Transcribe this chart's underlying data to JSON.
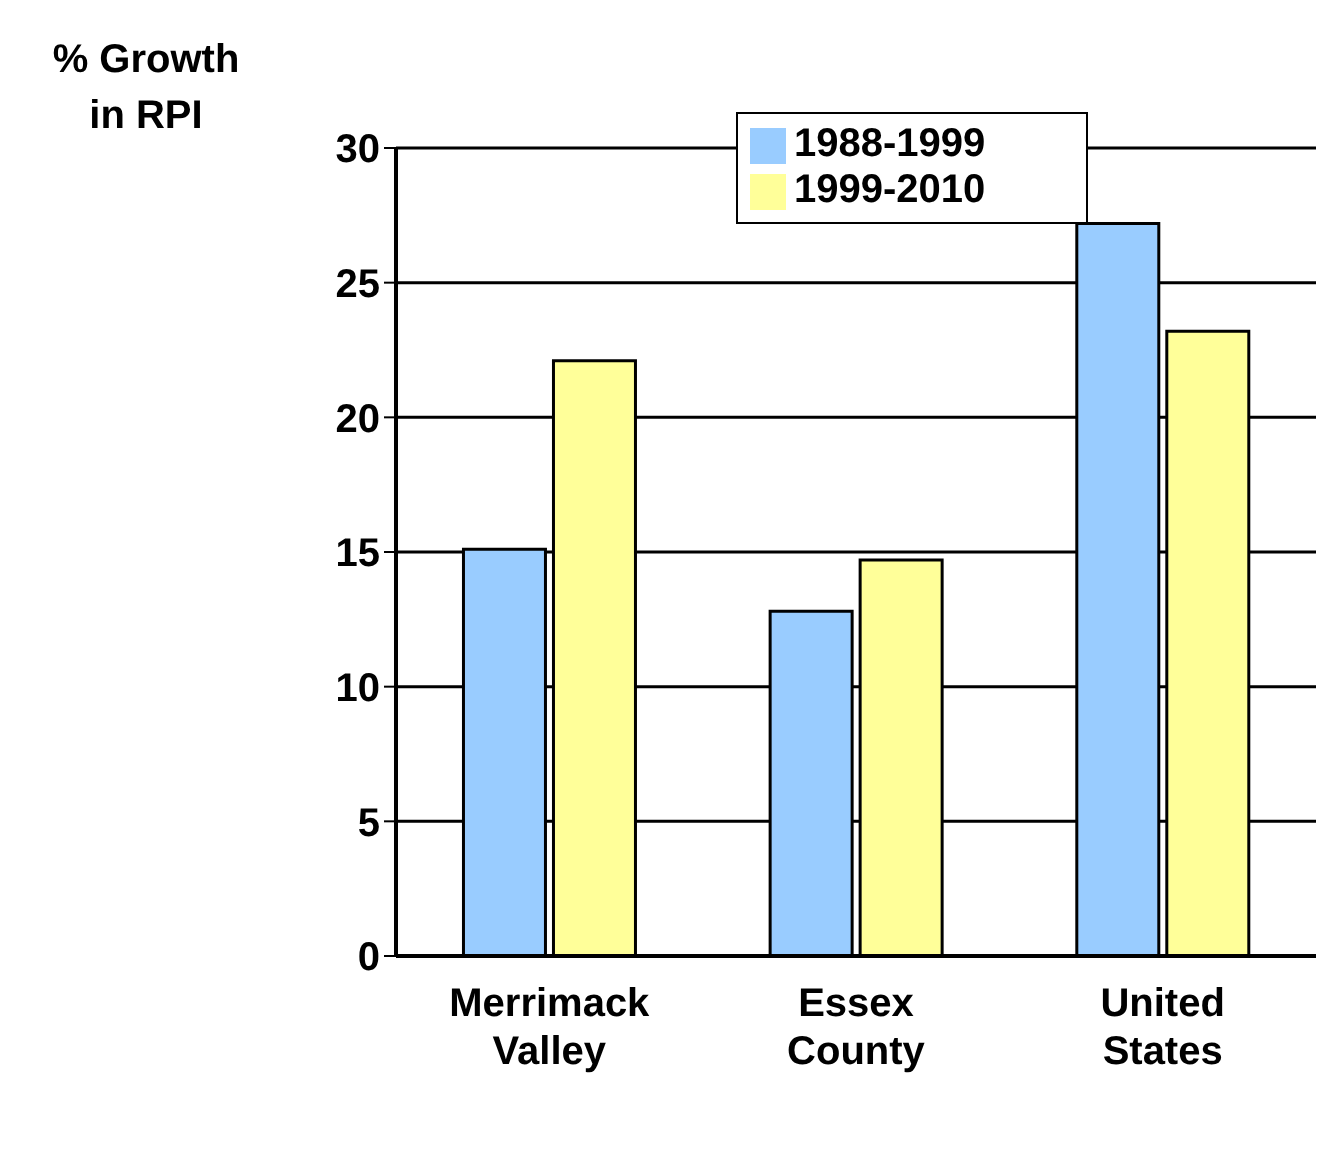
{
  "chart_data": {
    "type": "bar",
    "ylabel": "% Growth in RPI",
    "categories": [
      "Merrimack Valley",
      "Essex County",
      "United States"
    ],
    "series": [
      {
        "name": "1988-1999",
        "color": "#99ccff",
        "values": [
          15.1,
          12.8,
          27.2
        ]
      },
      {
        "name": "1999-2010",
        "color": "#ffff99",
        "values": [
          22.1,
          14.7,
          23.2
        ]
      }
    ],
    "ylim": [
      0,
      30
    ],
    "yticks": [
      0,
      5,
      10,
      15,
      20,
      25,
      30
    ],
    "grid": "y",
    "legend": "top"
  }
}
